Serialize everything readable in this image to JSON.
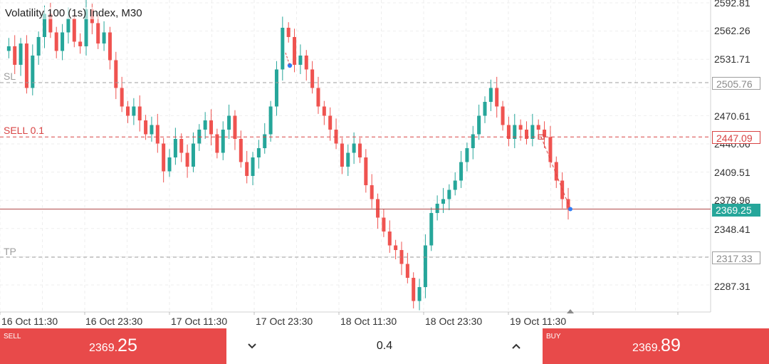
{
  "chart": {
    "title": "Volatility 100 (1s) Index, M30",
    "price_axis": [
      "2592.81",
      "2562.26",
      "2531.71",
      "2505.76",
      "2470.61",
      "2440.06",
      "2409.51",
      "2378.96",
      "2348.41",
      "2317.33",
      "2287.31"
    ],
    "time_axis": [
      "16 Oct 11:30",
      "16 Oct 23:30",
      "17 Oct 11:30",
      "17 Oct 23:30",
      "18 Oct 11:30",
      "18 Oct 23:30",
      "19 Oct 11:30"
    ],
    "lines": {
      "sl": {
        "label": "SL",
        "price": "2505.76"
      },
      "entry": {
        "label": "SELL 0.1",
        "price": "2447.09"
      },
      "current": {
        "price": "2369.25"
      },
      "tp": {
        "label": "TP",
        "price": "2317.33"
      }
    },
    "colors": {
      "bull": "#26a69a",
      "bear": "#ef5350",
      "sell_button": "#e84a4a",
      "buy_button": "#e84a4a",
      "current_price": "#26a69a"
    }
  },
  "chart_data": {
    "type": "candlestick",
    "title": "Volatility 100 (1s) Index, M30",
    "ylim": [
      2280,
      2595
    ],
    "close_path": [
      2540,
      2545,
      2525,
      2548,
      2500,
      2535,
      2555,
      2580,
      2560,
      2540,
      2560,
      2575,
      2550,
      2545,
      2585,
      2570,
      2548,
      2560,
      2530,
      2500,
      2480,
      2470,
      2480,
      2465,
      2450,
      2460,
      2440,
      2410,
      2425,
      2445,
      2430,
      2415,
      2440,
      2455,
      2465,
      2450,
      2430,
      2455,
      2470,
      2445,
      2420,
      2405,
      2425,
      2435,
      2450,
      2480,
      2520,
      2565,
      2555,
      2525,
      2535,
      2520,
      2500,
      2480,
      2470,
      2455,
      2440,
      2415,
      2430,
      2440,
      2425,
      2395,
      2380,
      2360,
      2345,
      2330,
      2325,
      2310,
      2295,
      2270,
      2285,
      2330,
      2365,
      2375,
      2380,
      2390,
      2400,
      2420,
      2435,
      2450,
      2470,
      2485,
      2500,
      2480,
      2460,
      2445,
      2460,
      2455,
      2445,
      2460,
      2455,
      2447,
      2420,
      2400,
      2380,
      2370
    ],
    "entry_price": 2447.09,
    "current_price": 2369.25,
    "stop_loss": 2505.76,
    "take_profit": 2317.33
  },
  "trade_bar": {
    "sell": {
      "label": "SELL",
      "price_small": "2369.",
      "price_big": "25"
    },
    "volume": "0.4",
    "buy": {
      "label": "BUY",
      "price_small": "2369.",
      "price_big": "89"
    }
  }
}
